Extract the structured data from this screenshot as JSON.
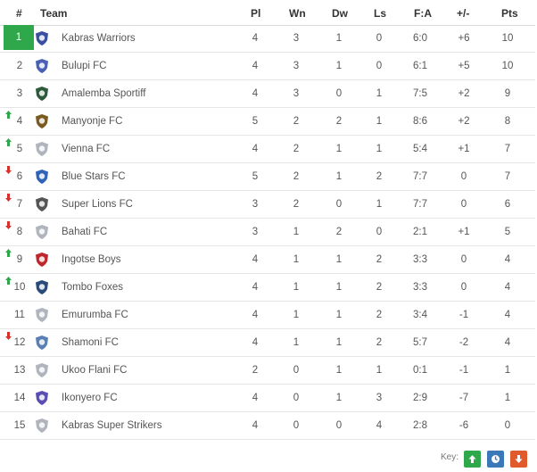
{
  "header": {
    "pos": "#",
    "team": "Team",
    "pl": "Pl",
    "wn": "Wn",
    "dw": "Dw",
    "ls": "Ls",
    "fa": "F:A",
    "gd": "+/-",
    "pts": "Pts"
  },
  "colors": {
    "leader": "#2ea84a",
    "up": "#2ea84a",
    "down": "#d9302c",
    "key_up": "#2ea84a",
    "key_neutral": "#3a78b8",
    "key_down": "#e05a2b"
  },
  "rows": [
    {
      "pos": "1",
      "team": "Kabras Warriors",
      "pl": "4",
      "wn": "3",
      "dw": "1",
      "ls": "0",
      "fa": "6:0",
      "gd": "+6",
      "pts": "10",
      "move": "",
      "badge": "#3a4fa0"
    },
    {
      "pos": "2",
      "team": "Bulupi FC",
      "pl": "4",
      "wn": "3",
      "dw": "1",
      "ls": "0",
      "fa": "6:1",
      "gd": "+5",
      "pts": "10",
      "move": "",
      "badge": "#4a5fb5"
    },
    {
      "pos": "3",
      "team": "Amalemba Sportiff",
      "pl": "4",
      "wn": "3",
      "dw": "0",
      "ls": "1",
      "fa": "7:5",
      "gd": "+2",
      "pts": "9",
      "move": "",
      "badge": "#2d5a3a"
    },
    {
      "pos": "4",
      "team": "Manyonje FC",
      "pl": "5",
      "wn": "2",
      "dw": "2",
      "ls": "1",
      "fa": "8:6",
      "gd": "+2",
      "pts": "8",
      "move": "up",
      "badge": "#7a5a20"
    },
    {
      "pos": "5",
      "team": "Vienna FC",
      "pl": "4",
      "wn": "2",
      "dw": "1",
      "ls": "1",
      "fa": "5:4",
      "gd": "+1",
      "pts": "7",
      "move": "up",
      "badge": "#b0b4bc"
    },
    {
      "pos": "6",
      "team": "Blue Stars FC",
      "pl": "5",
      "wn": "2",
      "dw": "1",
      "ls": "2",
      "fa": "7:7",
      "gd": "0",
      "pts": "7",
      "move": "down",
      "badge": "#2f63b8"
    },
    {
      "pos": "7",
      "team": "Super Lions FC",
      "pl": "3",
      "wn": "2",
      "dw": "0",
      "ls": "1",
      "fa": "7:7",
      "gd": "0",
      "pts": "6",
      "move": "down",
      "badge": "#555555"
    },
    {
      "pos": "8",
      "team": "Bahati FC",
      "pl": "3",
      "wn": "1",
      "dw": "2",
      "ls": "0",
      "fa": "2:1",
      "gd": "+1",
      "pts": "5",
      "move": "down",
      "badge": "#b0b4bc"
    },
    {
      "pos": "9",
      "team": "Ingotse Boys",
      "pl": "4",
      "wn": "1",
      "dw": "1",
      "ls": "2",
      "fa": "3:3",
      "gd": "0",
      "pts": "4",
      "move": "up",
      "badge": "#c0262d"
    },
    {
      "pos": "10",
      "team": "Tombo Foxes",
      "pl": "4",
      "wn": "1",
      "dw": "1",
      "ls": "2",
      "fa": "3:3",
      "gd": "0",
      "pts": "4",
      "move": "up",
      "badge": "#2a4a7a"
    },
    {
      "pos": "11",
      "team": "Emurumba FC",
      "pl": "4",
      "wn": "1",
      "dw": "1",
      "ls": "2",
      "fa": "3:4",
      "gd": "-1",
      "pts": "4",
      "move": "",
      "badge": "#b0b4bc"
    },
    {
      "pos": "12",
      "team": "Shamoni FC",
      "pl": "4",
      "wn": "1",
      "dw": "1",
      "ls": "2",
      "fa": "5:7",
      "gd": "-2",
      "pts": "4",
      "move": "down",
      "badge": "#5a7fb5"
    },
    {
      "pos": "13",
      "team": "Ukoo Flani FC",
      "pl": "2",
      "wn": "0",
      "dw": "1",
      "ls": "1",
      "fa": "0:1",
      "gd": "-1",
      "pts": "1",
      "move": "",
      "badge": "#b0b4bc"
    },
    {
      "pos": "14",
      "team": "Ikonyero FC",
      "pl": "4",
      "wn": "0",
      "dw": "1",
      "ls": "3",
      "fa": "2:9",
      "gd": "-7",
      "pts": "1",
      "move": "",
      "badge": "#5a4fb0"
    },
    {
      "pos": "15",
      "team": "Kabras Super Strikers",
      "pl": "4",
      "wn": "0",
      "dw": "0",
      "ls": "4",
      "fa": "2:8",
      "gd": "-6",
      "pts": "0",
      "move": "",
      "badge": "#b0b4bc"
    }
  ],
  "key": {
    "label": "Key:",
    "icons": [
      "arrow-up-icon",
      "clock-icon",
      "arrow-down-icon"
    ]
  }
}
